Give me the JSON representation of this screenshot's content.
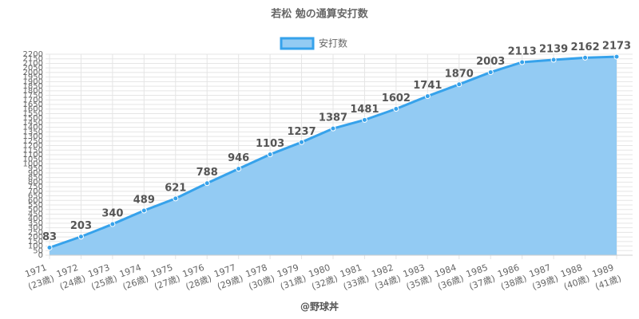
{
  "chart_data": {
    "type": "area",
    "title": "若松 勉の通算安打数",
    "categories": [
      "1971",
      "1972",
      "1973",
      "1974",
      "1975",
      "1976",
      "1977",
      "1978",
      "1979",
      "1980",
      "1981",
      "1982",
      "1983",
      "1984",
      "1985",
      "1986",
      "1987",
      "1988",
      "1989"
    ],
    "category_ages": [
      "(23歳)",
      "(24歳)",
      "(25歳)",
      "(26歳)",
      "(27歳)",
      "(28歳)",
      "(29歳)",
      "(30歳)",
      "(31歳)",
      "(32歳)",
      "(33歳)",
      "(34歳)",
      "(35歳)",
      "(36歳)",
      "(37歳)",
      "(38歳)",
      "(39歳)",
      "(40歳)",
      "(41歳)"
    ],
    "series": [
      {
        "name": "安打数",
        "color": "#36a2eb",
        "fill": "#93cbf3",
        "values": [
          83,
          203,
          340,
          489,
          621,
          788,
          946,
          1103,
          1237,
          1387,
          1481,
          1602,
          1741,
          1870,
          2003,
          2113,
          2139,
          2162,
          2173
        ]
      }
    ],
    "ylim": [
      0,
      2200
    ],
    "yticks": [
      0,
      50,
      100,
      150,
      200,
      250,
      300,
      350,
      400,
      450,
      500,
      550,
      600,
      650,
      700,
      750,
      800,
      850,
      900,
      950,
      1000,
      1050,
      1100,
      1150,
      1200,
      1250,
      1300,
      1350,
      1400,
      1450,
      1500,
      1550,
      1600,
      1650,
      1700,
      1750,
      1800,
      1850,
      1900,
      1950,
      2000,
      2050,
      2100,
      2150,
      2200
    ],
    "grid": true,
    "legend": "top",
    "footer": "@野球丼"
  }
}
